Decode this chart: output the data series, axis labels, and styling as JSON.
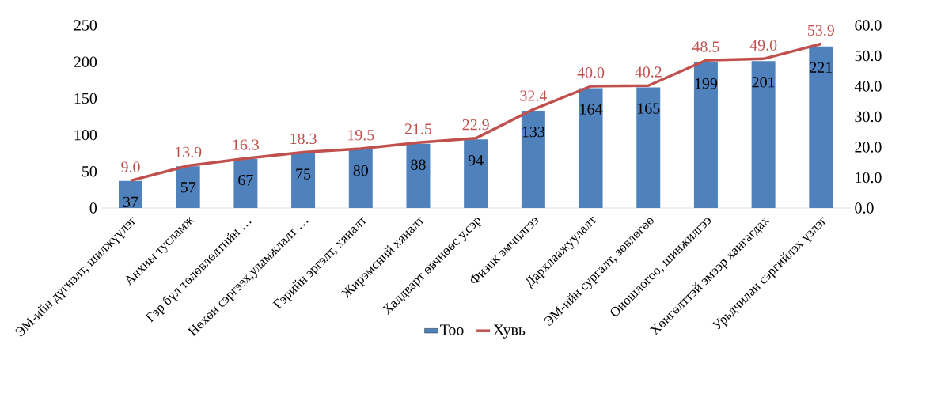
{
  "chart_data": {
    "type": "bar",
    "categories": [
      "ЭМ-ийн дүгнэлт, шилжүүлэг",
      "Анхны тусламж",
      "Гэр бүл төлөвлөлтийн …",
      "Нөхөн сэргээх,уламжлалт …",
      "Гэрийн эргэлт, хяналт",
      "Жирэмсний хяналт",
      "Халдварт өвчнөөс у.сэр",
      "Физик эмчилгээ",
      "Дархлаажуулалт",
      "ЭМ-ийн сургалт, зөвлөгөө",
      "Оношлогоо, шинжилгээ",
      "Хөнгөлттэй эмээр хангагдах",
      "Урьдчилан сэргийлэх үзлэг"
    ],
    "series": [
      {
        "name": "Тоо",
        "color": "#4f81bd",
        "values": [
          37,
          57,
          67,
          75,
          80,
          88,
          94,
          133,
          164,
          165,
          199,
          201,
          221
        ],
        "value_labels": [
          "37",
          "57",
          "67",
          "75",
          "80",
          "88",
          "94",
          "133",
          "164",
          "165",
          "199",
          "201",
          "221"
        ]
      },
      {
        "name": "Хувь",
        "type": "line",
        "axis": "y2",
        "color": "#c0504d",
        "values": [
          9.0,
          13.9,
          16.3,
          18.3,
          19.5,
          21.5,
          22.9,
          32.4,
          40.0,
          40.2,
          48.5,
          49.0,
          53.9
        ],
        "value_labels": [
          "9.0",
          "13.9",
          "16.3",
          "18.3",
          "19.5",
          "21.5",
          "22.9",
          "32.4",
          "40.0",
          "40.2",
          "48.5",
          "49.0",
          "53.9"
        ]
      }
    ],
    "ylim": [
      0,
      250
    ],
    "yticks": [
      0,
      50,
      100,
      150,
      200,
      250
    ],
    "y2lim": [
      0,
      60
    ],
    "y2ticks": [
      {
        "value": 0,
        "label": "0.0"
      },
      {
        "value": 10,
        "label": "10.0"
      },
      {
        "value": 20,
        "label": "20.0"
      },
      {
        "value": 30,
        "label": "30.0"
      },
      {
        "value": 40,
        "label": "40.0"
      },
      {
        "value": 50,
        "label": "50.0"
      },
      {
        "value": 60,
        "label": "60.0"
      }
    ],
    "legend": "bottom",
    "grid": false,
    "marker": "none"
  }
}
